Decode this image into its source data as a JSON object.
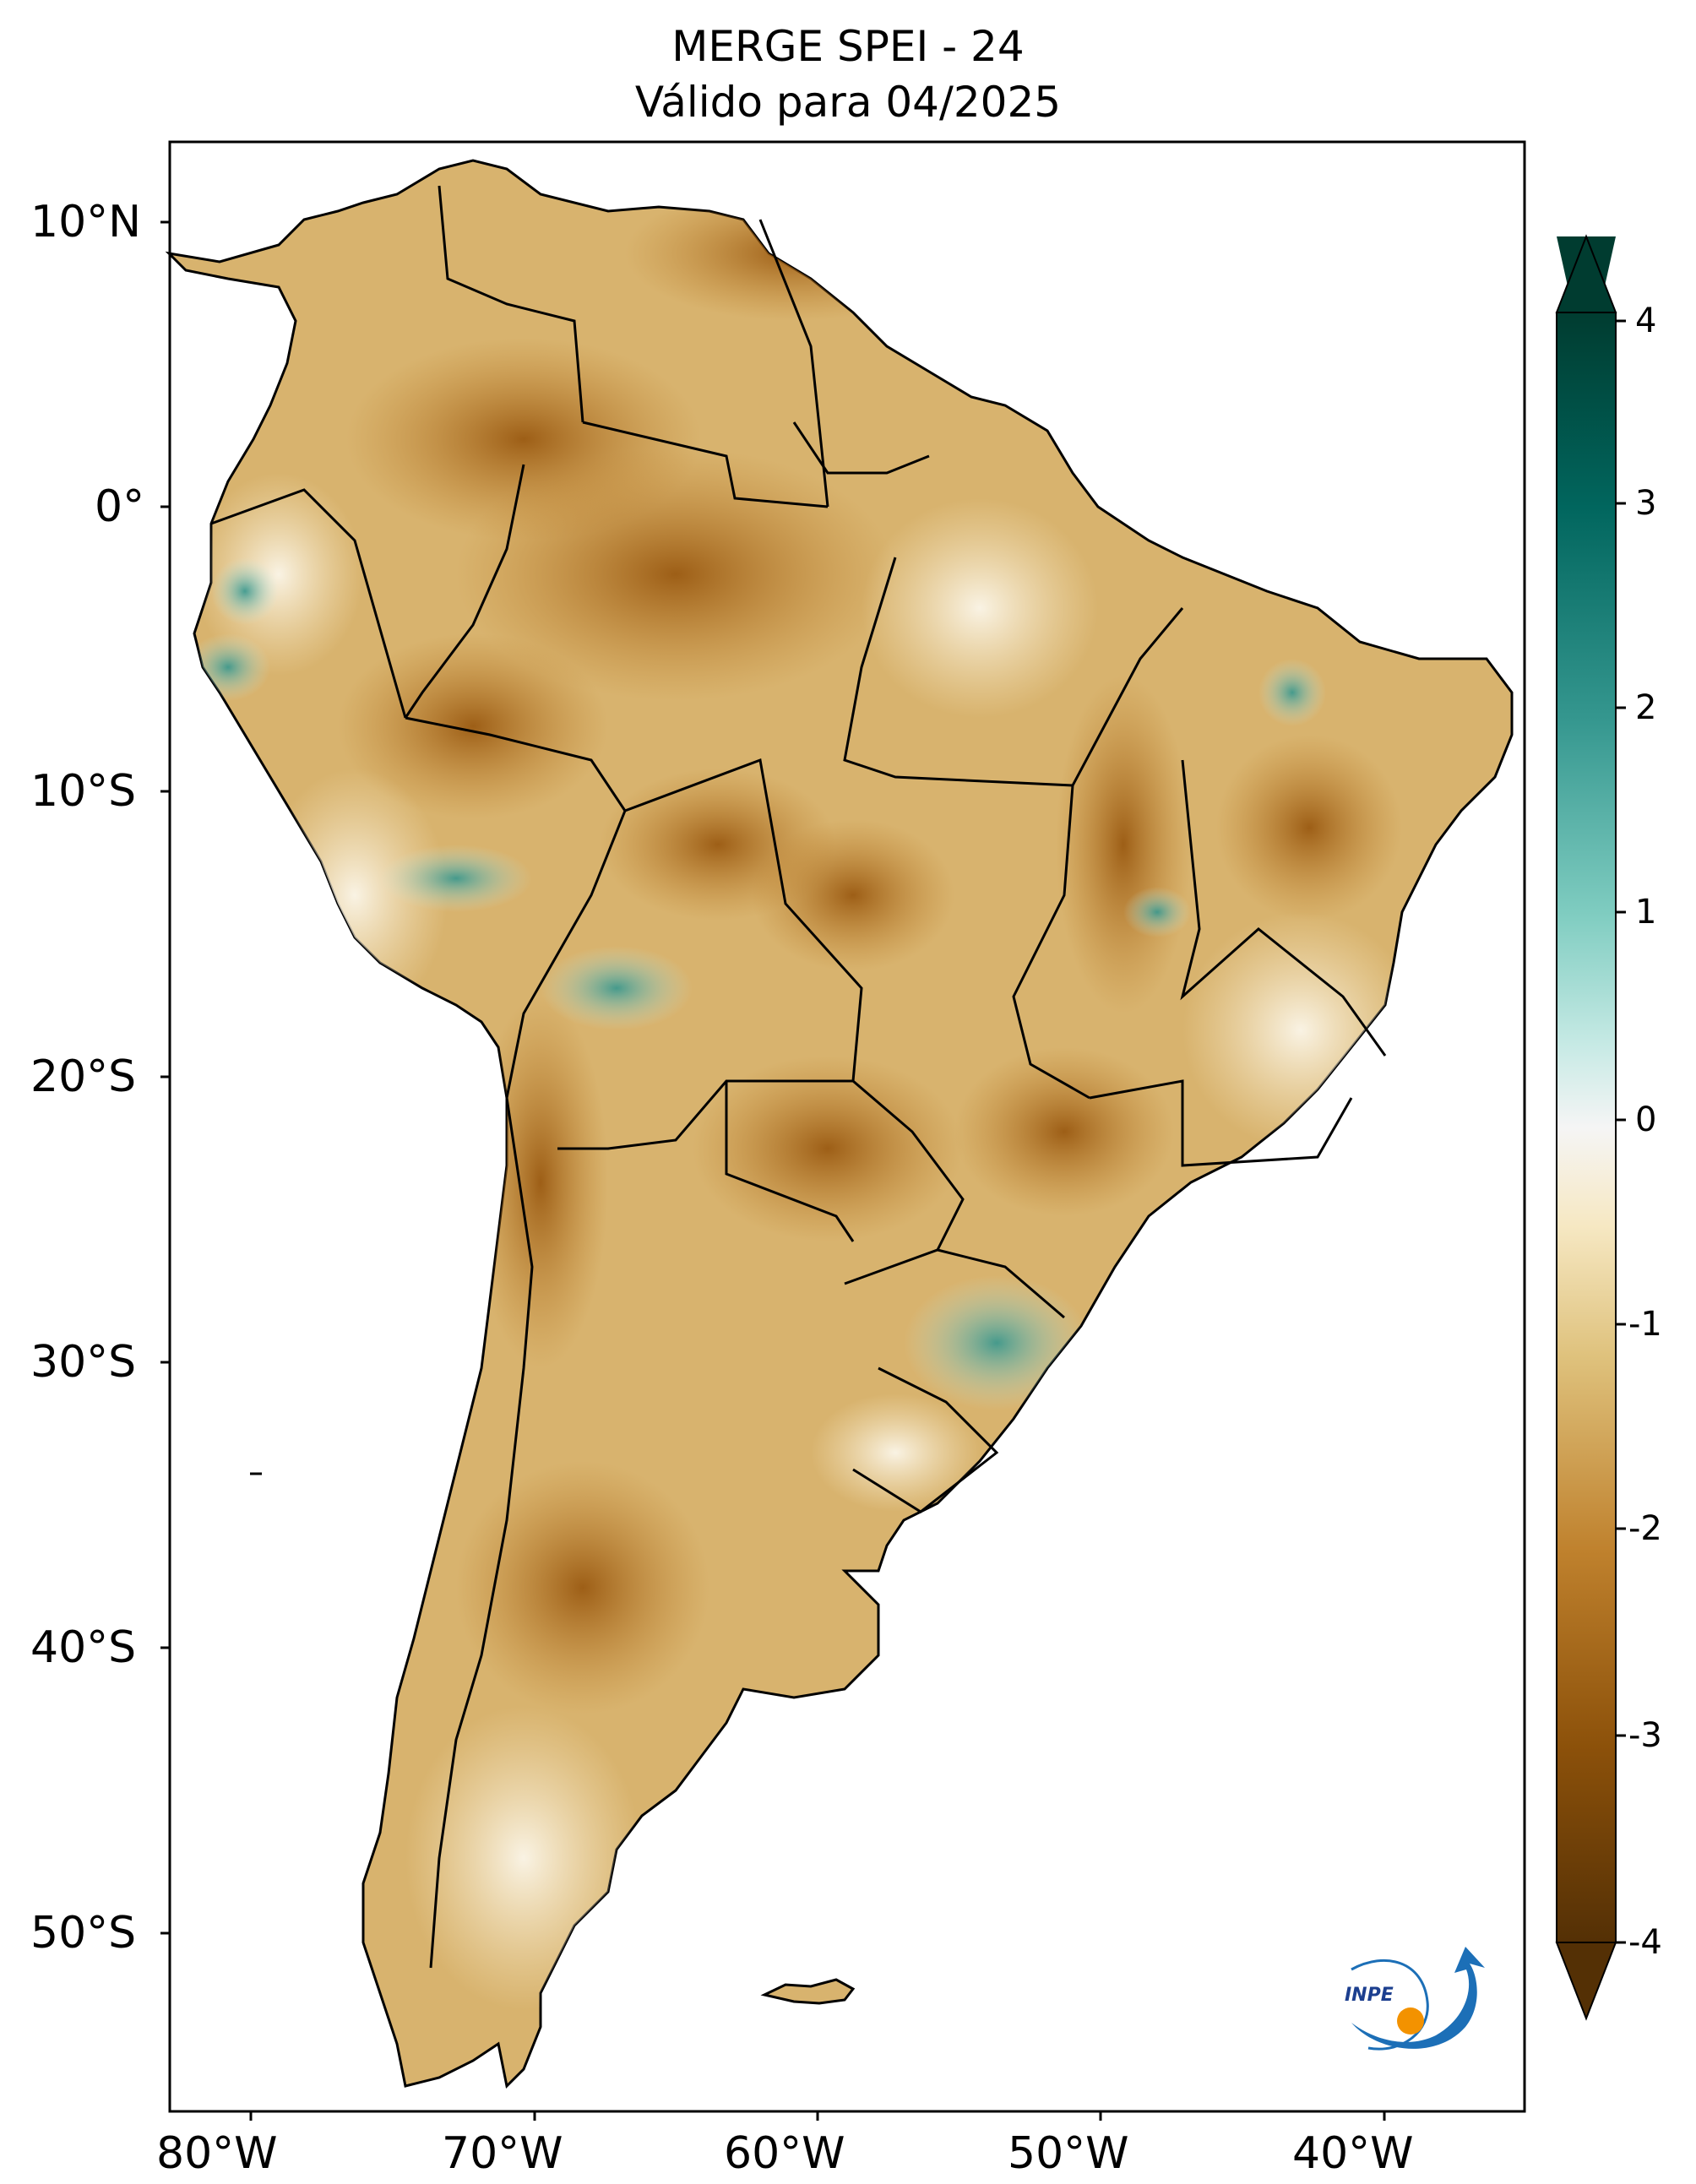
{
  "title": {
    "line1": "MERGE   SPEI - 24",
    "line2": "Válido para 04/2025"
  },
  "map": {
    "variable": "SPEI - 24",
    "region": "South America",
    "lat_labels": [
      "10°N",
      "0°",
      "10°S",
      "20°S",
      "30°S",
      "40°S",
      "50°S"
    ],
    "lon_labels": [
      "80°W",
      "70°W",
      "60°W",
      "50°W",
      "40°W"
    ],
    "dominant_condition": "dry (brown) across most of the continent, wet patches in Peru, southern Brazil and coastal Ecuador"
  },
  "colorbar": {
    "ticks": [
      "4",
      "3",
      "2",
      "1",
      "0",
      "-1",
      "-2",
      "-3",
      "-4"
    ],
    "range": [
      -4,
      4
    ],
    "colors": {
      "wet_extreme": "#003c30",
      "wet_high": "#01665e",
      "wet_mid": "#35978f",
      "wet_low": "#80cdc1",
      "wet_light": "#c7eae5",
      "neutral": "#f5f5f5",
      "dry_light": "#f6e8c3",
      "dry_low": "#dfc27d",
      "dry_mid": "#bf812d",
      "dry_high": "#8c510a",
      "dry_extreme": "#543005"
    },
    "extend": "both"
  },
  "logo": {
    "text": "INPE",
    "colors": {
      "blue": "#1c6fb7",
      "orange": "#f39200"
    }
  }
}
